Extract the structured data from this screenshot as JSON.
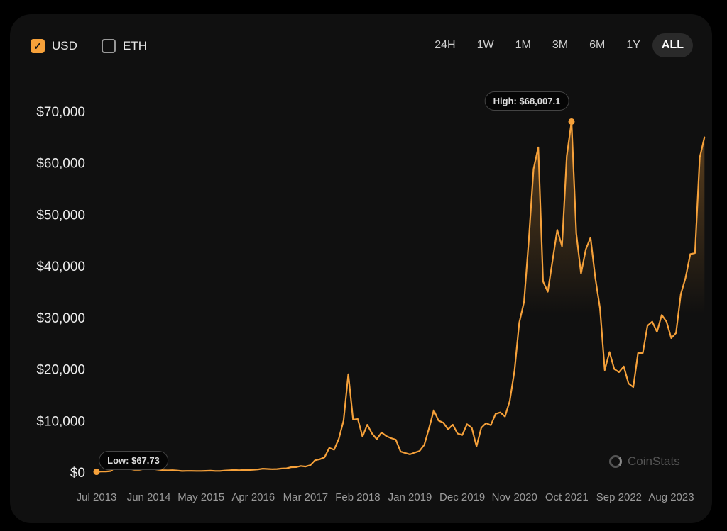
{
  "currency_toggles": [
    {
      "label": "USD",
      "checked": true
    },
    {
      "label": "ETH",
      "checked": false
    }
  ],
  "time_ranges": [
    {
      "label": "24H"
    },
    {
      "label": "1W"
    },
    {
      "label": "1M"
    },
    {
      "label": "3M"
    },
    {
      "label": "6M"
    },
    {
      "label": "1Y"
    },
    {
      "label": "ALL",
      "active": true
    }
  ],
  "watermark": "CoinStats",
  "colors": {
    "accent": "#f6a13a",
    "background": "#101010"
  },
  "chart_data": {
    "type": "area",
    "title": "",
    "xlabel": "",
    "ylabel": "",
    "ylim": [
      0,
      70000
    ],
    "grid": false,
    "y_ticks": [
      "$0",
      "$10,000",
      "$20,000",
      "$30,000",
      "$40,000",
      "$50,000",
      "$60,000",
      "$70,000"
    ],
    "y_tick_values": [
      0,
      10000,
      20000,
      30000,
      40000,
      50000,
      60000,
      70000
    ],
    "x_ticks": [
      "Jul 2013",
      "Jun 2014",
      "May 2015",
      "Apr 2016",
      "Mar 2017",
      "Feb 2018",
      "Jan 2019",
      "Dec 2019",
      "Nov 2020",
      "Oct 2021",
      "Sep 2022",
      "Aug 2023"
    ],
    "x_tick_dates": [
      "2013-07",
      "2014-06",
      "2015-05",
      "2016-04",
      "2017-03",
      "2018-02",
      "2019-01",
      "2019-12",
      "2020-11",
      "2021-10",
      "2022-09",
      "2023-08"
    ],
    "annotations": {
      "high": {
        "label": "High: $68,007.1",
        "date": "2021-11",
        "value": 68007.1
      },
      "low": {
        "label": "Low: $67.73",
        "date": "2013-07",
        "value": 67.73
      }
    },
    "series": [
      {
        "start": "2013-07",
        "interval": "month",
        "values": [
          67.73,
          130,
          130,
          200,
          1000,
          750,
          900,
          600,
          450,
          450,
          600,
          640,
          590,
          480,
          390,
          340,
          380,
          320,
          220,
          250,
          245,
          235,
          230,
          265,
          285,
          230,
          236,
          315,
          378,
          430,
          370,
          437,
          416,
          448,
          531,
          670,
          624,
          575,
          609,
          700,
          745,
          960,
          970,
          1190,
          1080,
          1350,
          2300,
          2500,
          2870,
          4700,
          4340,
          6470,
          10000,
          19000,
          10200,
          10300,
          6900,
          9200,
          7500,
          6400,
          7700,
          7000,
          6600,
          6300,
          4000,
          3700,
          3450,
          3800,
          4100,
          5300,
          8500,
          12000,
          10000,
          9600,
          8300,
          9200,
          7500,
          7200,
          9300,
          8600,
          5000,
          8600,
          9500,
          9100,
          11300,
          11600,
          10800,
          13800,
          19700,
          29000,
          33000,
          45000,
          58800,
          63000,
          37000,
          35000,
          41000,
          47000,
          43800,
          61300,
          68007.1,
          46300,
          38500,
          43200,
          45500,
          37700,
          31800,
          19800,
          23300,
          20000,
          19400,
          20500,
          17200,
          16500,
          23100,
          23100,
          28400,
          29200,
          27200,
          30500,
          29200,
          26000,
          27000,
          34500,
          37700,
          42300,
          42500,
          61000,
          65000
        ]
      }
    ]
  }
}
